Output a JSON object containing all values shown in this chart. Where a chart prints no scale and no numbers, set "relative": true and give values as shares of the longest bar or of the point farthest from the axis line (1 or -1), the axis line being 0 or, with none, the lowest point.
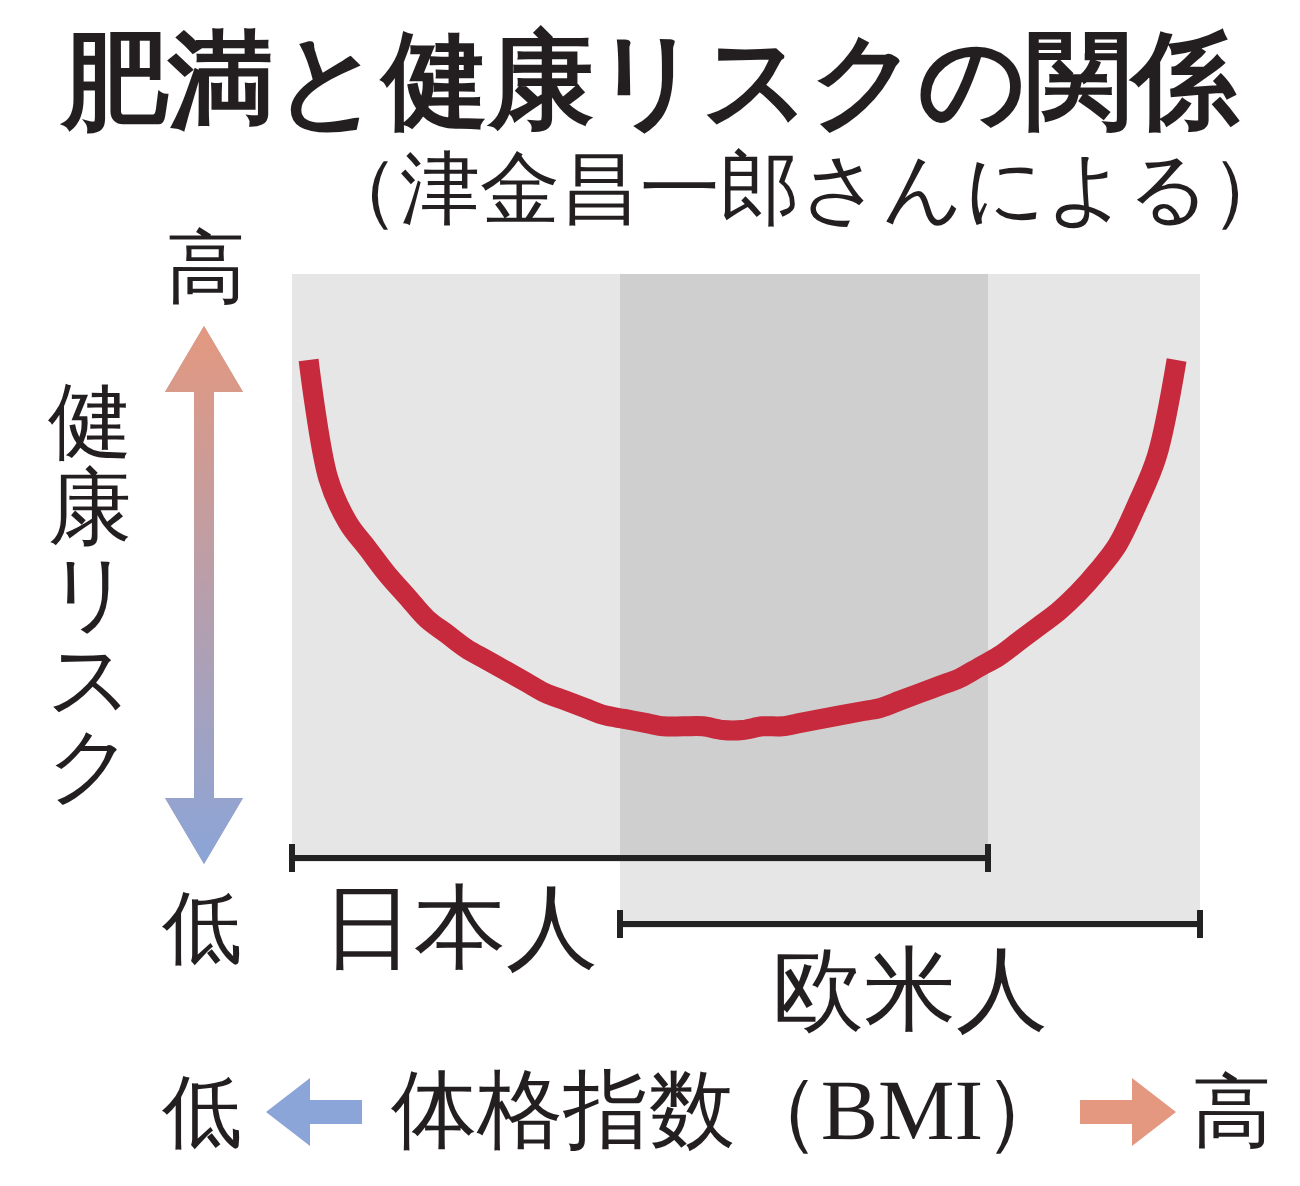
{
  "chart_data": {
    "type": "line",
    "title": "肥満と健康リスクの関係",
    "subtitle": "（津金昌一郎さんによる）",
    "xlabel": "体格指数（BMI）",
    "ylabel": "健康リスク",
    "relative": true,
    "categories": [
      null,
      null,
      null,
      null,
      null,
      null,
      null,
      null,
      null,
      null,
      null,
      null,
      null,
      null,
      null,
      null,
      null,
      null,
      null,
      null,
      null,
      null,
      null,
      null,
      null,
      null,
      null,
      null,
      null,
      null,
      null,
      null,
      null,
      null,
      null,
      null,
      null,
      null,
      null,
      null,
      null,
      null,
      null,
      null,
      null
    ],
    "series": [
      {
        "color": "#c62a3c",
        "values": [
          1,
          0.68,
          0.56,
          0.49,
          0.42,
          0.36,
          0.3,
          0.26,
          0.22,
          0.19,
          0.16,
          0.13,
          0.1,
          0.08,
          0.06,
          0.04,
          0.03,
          0.02,
          0.01,
          0.01,
          0.01,
          0,
          0,
          0.01,
          0.01,
          0.02,
          0.03,
          0.04,
          0.05,
          0.06,
          0.08,
          0.1,
          0.12,
          0.14,
          0.17,
          0.2,
          0.24,
          0.28,
          0.32,
          0.37,
          0.43,
          0.5,
          0.61,
          0.74,
          1
        ]
      }
    ],
    "annotations": [
      "高",
      "低",
      "日本人",
      "欧米人",
      "低",
      "高"
    ]
  }
}
